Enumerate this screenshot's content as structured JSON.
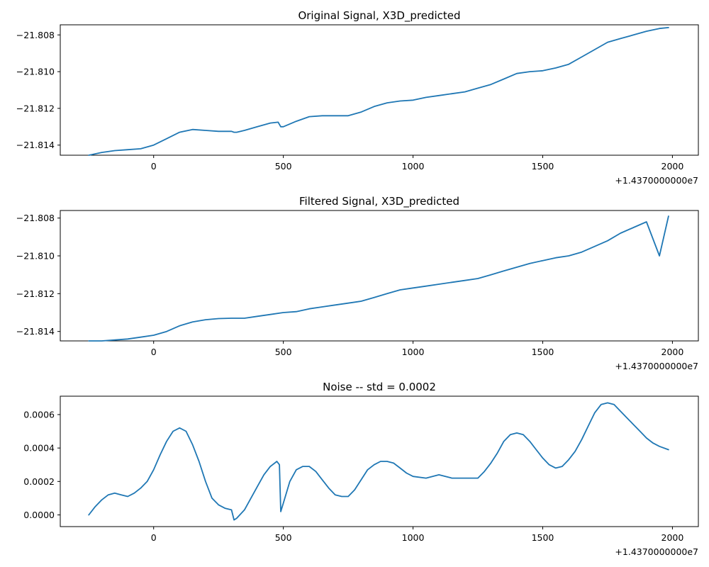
{
  "chart_data": [
    {
      "type": "line",
      "title": "Original Signal, X3D_predicted",
      "x_offset_label": "+1.4370000000e7",
      "xlim": [
        -360,
        2100
      ],
      "ylim": [
        -21.81455,
        -21.80745
      ],
      "x_ticks": [
        0,
        500,
        1000,
        1500,
        2000
      ],
      "y_ticks": [
        -21.814,
        -21.812,
        -21.81,
        -21.808
      ],
      "y_tick_labels": [
        "−21.814",
        "−21.812",
        "−21.810",
        "−21.808"
      ],
      "grid": false,
      "line_color": "#1f77b4",
      "x": [
        -250,
        -200,
        -150,
        -100,
        -50,
        0,
        50,
        100,
        150,
        200,
        250,
        300,
        310,
        320,
        350,
        400,
        450,
        480,
        490,
        500,
        550,
        600,
        650,
        700,
        750,
        800,
        850,
        900,
        950,
        1000,
        1050,
        1100,
        1150,
        1200,
        1250,
        1300,
        1350,
        1400,
        1450,
        1500,
        1550,
        1600,
        1650,
        1700,
        1750,
        1800,
        1850,
        1900,
        1950,
        1985
      ],
      "y": [
        -21.81455,
        -21.8144,
        -21.8143,
        -21.81425,
        -21.8142,
        -21.814,
        -21.81365,
        -21.8133,
        -21.81315,
        -21.8132,
        -21.81325,
        -21.81325,
        -21.8133,
        -21.8133,
        -21.8132,
        -21.813,
        -21.8128,
        -21.81275,
        -21.813,
        -21.813,
        -21.8127,
        -21.81245,
        -21.8124,
        -21.8124,
        -21.8124,
        -21.8122,
        -21.8119,
        -21.8117,
        -21.8116,
        -21.81155,
        -21.8114,
        -21.8113,
        -21.8112,
        -21.8111,
        -21.8109,
        -21.8107,
        -21.8104,
        -21.8101,
        -21.81,
        -21.80995,
        -21.8098,
        -21.8096,
        -21.8092,
        -21.8088,
        -21.8084,
        -21.8082,
        -21.808,
        -21.8078,
        -21.80765,
        -21.8076
      ]
    },
    {
      "type": "line",
      "title": "Filtered Signal, X3D_predicted",
      "x_offset_label": "+1.4370000000e7",
      "xlim": [
        -360,
        2100
      ],
      "ylim": [
        -21.8145,
        -21.8076
      ],
      "x_ticks": [
        0,
        500,
        1000,
        1500,
        2000
      ],
      "y_ticks": [
        -21.814,
        -21.812,
        -21.81,
        -21.808
      ],
      "y_tick_labels": [
        "−21.814",
        "−21.812",
        "−21.810",
        "−21.808"
      ],
      "grid": false,
      "line_color": "#1f77b4",
      "x": [
        -250,
        -200,
        -150,
        -100,
        -50,
        0,
        50,
        100,
        150,
        200,
        250,
        300,
        350,
        400,
        450,
        500,
        550,
        600,
        650,
        700,
        750,
        800,
        850,
        900,
        950,
        1000,
        1050,
        1100,
        1150,
        1200,
        1250,
        1300,
        1350,
        1400,
        1450,
        1500,
        1550,
        1600,
        1650,
        1700,
        1750,
        1800,
        1850,
        1900,
        1950,
        1985
      ],
      "y": [
        -21.81455,
        -21.8145,
        -21.81445,
        -21.8144,
        -21.8143,
        -21.8142,
        -21.814,
        -21.8137,
        -21.8135,
        -21.81338,
        -21.81332,
        -21.8133,
        -21.8133,
        -21.8132,
        -21.8131,
        -21.813,
        -21.81295,
        -21.8128,
        -21.8127,
        -21.8126,
        -21.8125,
        -21.8124,
        -21.8122,
        -21.812,
        -21.8118,
        -21.8117,
        -21.8116,
        -21.8115,
        -21.8114,
        -21.8113,
        -21.8112,
        -21.811,
        -21.8108,
        -21.8106,
        -21.8104,
        -21.81025,
        -21.8101,
        -21.81,
        -21.8098,
        -21.8095,
        -21.8092,
        -21.8088,
        -21.8085,
        -21.8082,
        -21.81,
        -21.8079
      ]
    },
    {
      "type": "line",
      "title": "Noise -- std = 0.0002",
      "x_offset_label": "+1.4370000000e7",
      "xlim": [
        -360,
        2100
      ],
      "ylim": [
        -7e-05,
        0.00071
      ],
      "x_ticks": [
        0,
        500,
        1000,
        1500,
        2000
      ],
      "y_ticks": [
        0.0,
        0.0002,
        0.0004,
        0.0006
      ],
      "y_tick_labels": [
        "0.0000",
        "0.0002",
        "0.0004",
        "0.0006"
      ],
      "grid": false,
      "line_color": "#1f77b4",
      "x": [
        -250,
        -225,
        -200,
        -175,
        -150,
        -125,
        -100,
        -75,
        -50,
        -25,
        0,
        25,
        50,
        75,
        100,
        125,
        150,
        175,
        200,
        225,
        250,
        275,
        300,
        310,
        320,
        350,
        375,
        400,
        425,
        450,
        475,
        485,
        490,
        500,
        525,
        550,
        575,
        600,
        625,
        650,
        675,
        700,
        725,
        750,
        775,
        800,
        825,
        850,
        875,
        900,
        925,
        950,
        975,
        1000,
        1050,
        1100,
        1150,
        1200,
        1250,
        1275,
        1300,
        1325,
        1350,
        1375,
        1400,
        1425,
        1450,
        1475,
        1500,
        1525,
        1550,
        1575,
        1600,
        1625,
        1650,
        1675,
        1700,
        1725,
        1750,
        1775,
        1800,
        1825,
        1850,
        1875,
        1900,
        1925,
        1950,
        1985
      ],
      "y": [
        0.0,
        5e-05,
        9e-05,
        0.00012,
        0.00013,
        0.00012,
        0.00011,
        0.00013,
        0.00016,
        0.0002,
        0.00027,
        0.00036,
        0.00044,
        0.0005,
        0.00052,
        0.0005,
        0.00042,
        0.00032,
        0.0002,
        0.0001,
        6e-05,
        4e-05,
        3e-05,
        -3e-05,
        -2e-05,
        3e-05,
        0.0001,
        0.00017,
        0.00024,
        0.00029,
        0.00032,
        0.0003,
        2e-05,
        7e-05,
        0.0002,
        0.00027,
        0.00029,
        0.00029,
        0.00026,
        0.00021,
        0.00016,
        0.00012,
        0.00011,
        0.00011,
        0.00015,
        0.00021,
        0.00027,
        0.0003,
        0.00032,
        0.00032,
        0.00031,
        0.00028,
        0.00025,
        0.00023,
        0.00022,
        0.00024,
        0.00022,
        0.00022,
        0.00022,
        0.00026,
        0.00031,
        0.00037,
        0.00044,
        0.00048,
        0.00049,
        0.00048,
        0.00044,
        0.00039,
        0.00034,
        0.0003,
        0.00028,
        0.00029,
        0.00033,
        0.00038,
        0.00045,
        0.00053,
        0.00061,
        0.00066,
        0.00067,
        0.00066,
        0.00062,
        0.00058,
        0.00054,
        0.0005,
        0.00046,
        0.00043,
        0.00041,
        0.00039
      ]
    }
  ]
}
